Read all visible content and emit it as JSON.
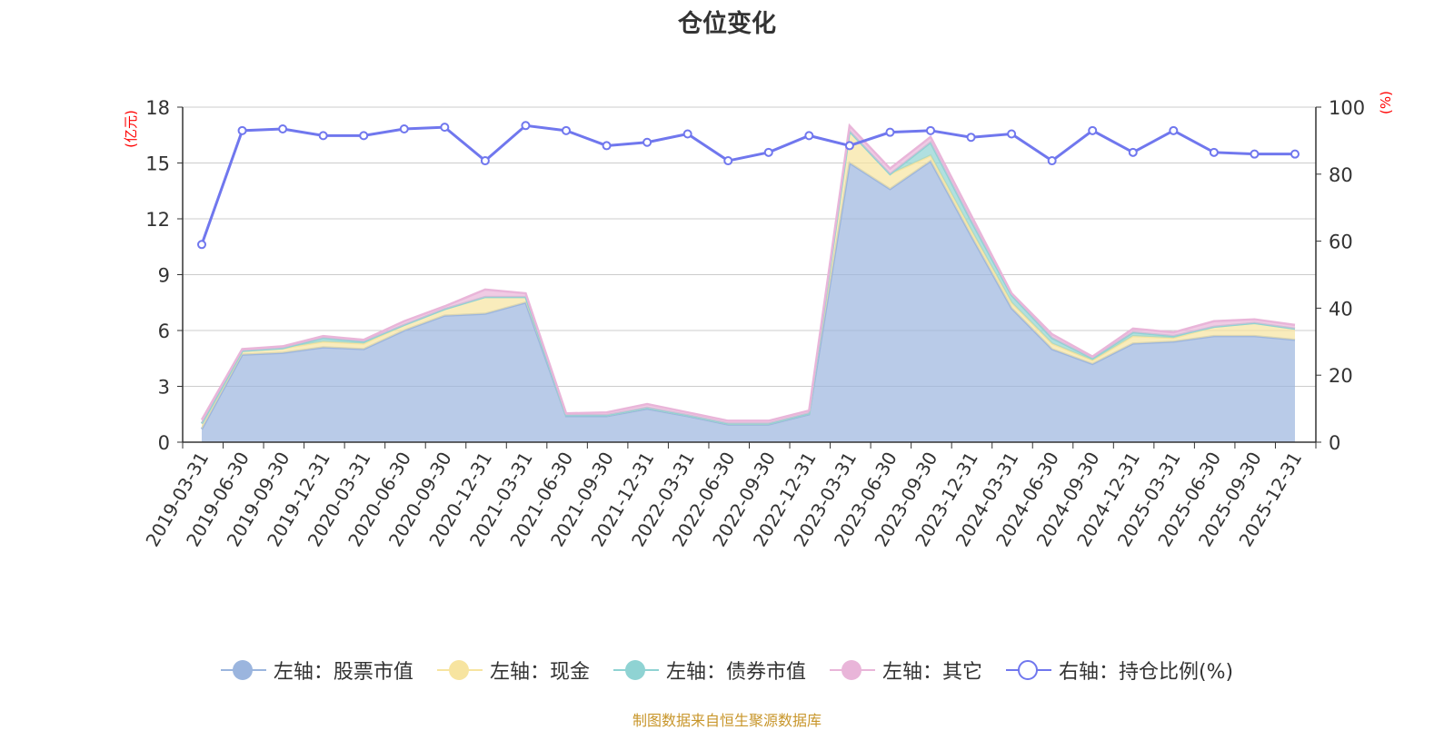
{
  "chart_data": {
    "type": "area",
    "title": "仓位变化",
    "left_axis_label": "(亿元)",
    "right_axis_label": "(%)",
    "y_left_lim": [
      0,
      18
    ],
    "y_left_ticks": [
      "0",
      "3",
      "6",
      "9",
      "12",
      "15",
      "18"
    ],
    "y_right_lim": [
      0,
      100
    ],
    "y_right_ticks": [
      "0",
      "20",
      "40",
      "60",
      "80",
      "100"
    ],
    "categories": [
      "2019-03-31",
      "2019-06-30",
      "2019-09-30",
      "2019-12-31",
      "2020-03-31",
      "2020-06-30",
      "2020-09-30",
      "2020-12-31",
      "2021-03-31",
      "2021-06-30",
      "2021-09-30",
      "2021-12-31",
      "2022-03-31",
      "2022-06-30",
      "2022-09-30",
      "2022-12-31",
      "2023-03-31",
      "2023-06-30",
      "2023-09-30",
      "2023-12-31",
      "2024-03-31",
      "2024-06-30",
      "2024-09-30",
      "2024-12-31",
      "2025-03-31",
      "2025-06-30",
      "2025-09-30",
      "2025-12-31"
    ],
    "series": [
      {
        "name": "左轴：股票市值",
        "axis": "left",
        "color": "#9bb5de",
        "values": [
          0.7,
          4.7,
          4.8,
          5.1,
          5.0,
          6.0,
          6.8,
          6.9,
          7.5,
          1.4,
          1.4,
          1.8,
          1.4,
          0.95,
          0.95,
          1.5,
          15.0,
          13.6,
          15.1,
          11.1,
          7.2,
          5.0,
          4.2,
          5.3,
          5.4,
          5.7,
          5.7,
          5.5
        ]
      },
      {
        "name": "左轴：现金",
        "axis": "left",
        "color": "#f7e4a0",
        "values": [
          0.3,
          0.2,
          0.25,
          0.3,
          0.3,
          0.3,
          0.35,
          0.9,
          0.3,
          0.05,
          0.05,
          0.05,
          0.05,
          0.05,
          0.05,
          0.05,
          1.7,
          0.8,
          0.3,
          0.3,
          0.3,
          0.3,
          0.2,
          0.4,
          0.2,
          0.5,
          0.7,
          0.6
        ]
      },
      {
        "name": "左轴：债券市值",
        "axis": "left",
        "color": "#8fd3d3",
        "values": [
          0.0,
          0.0,
          0.0,
          0.2,
          0.1,
          0.0,
          0.0,
          0.0,
          0.0,
          0.0,
          0.0,
          0.0,
          0.0,
          0.0,
          0.0,
          0.0,
          0.0,
          0.0,
          0.7,
          0.5,
          0.4,
          0.3,
          0.1,
          0.2,
          0.1,
          0.0,
          0.0,
          0.0
        ]
      },
      {
        "name": "左轴：其它",
        "axis": "left",
        "color": "#e9b5d9",
        "values": [
          0.2,
          0.1,
          0.1,
          0.1,
          0.1,
          0.2,
          0.15,
          0.4,
          0.2,
          0.1,
          0.15,
          0.2,
          0.15,
          0.15,
          0.15,
          0.15,
          0.3,
          0.3,
          0.3,
          0.3,
          0.1,
          0.2,
          0.1,
          0.2,
          0.2,
          0.3,
          0.2,
          0.2
        ]
      },
      {
        "name": "右轴：持仓比例(%)",
        "axis": "right",
        "color": "#7077ee",
        "values": [
          59,
          93,
          93.5,
          91.5,
          91.5,
          93.5,
          94,
          84,
          94.5,
          93,
          88.5,
          89.5,
          92,
          84,
          86.5,
          91.5,
          88.5,
          92.5,
          93,
          91,
          92,
          84,
          93,
          86.5,
          93,
          86.5,
          86,
          86
        ]
      }
    ]
  },
  "legend": [
    {
      "label": "左轴：股票市值",
      "color": "#9bb5de",
      "type": "area"
    },
    {
      "label": "左轴：现金",
      "color": "#f7e4a0",
      "type": "area"
    },
    {
      "label": "左轴：债券市值",
      "color": "#8fd3d3",
      "type": "area"
    },
    {
      "label": "左轴：其它",
      "color": "#e9b5d9",
      "type": "area"
    },
    {
      "label": "右轴：持仓比例(%)",
      "color": "#7077ee",
      "type": "line"
    }
  ],
  "source": "制图数据来自恒生聚源数据库"
}
